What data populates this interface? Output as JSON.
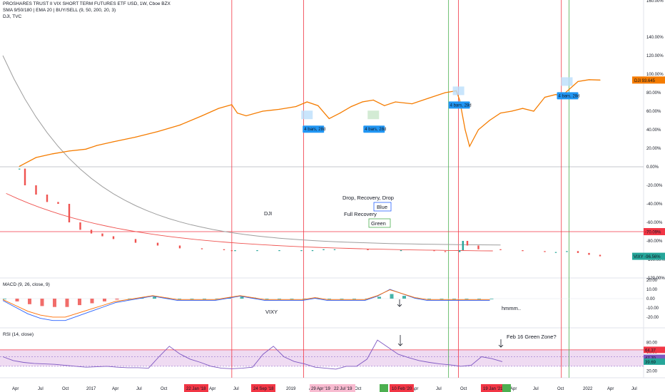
{
  "header": {
    "line1": "PROSHARES TRUST II VIX SHORT TERM FUTURES ETF USD, 1W, Cboe BZX",
    "line2": "SMA 9/50/180 | EMA 20 | BUY/SELL (9, 50, 200, 20, 3)",
    "line3": "DJI, TVC"
  },
  "indicators": {
    "macd_label": "MACD (9, 26, close, 9)",
    "rsi_label": "RSI (14, close)"
  },
  "colors": {
    "dji": "#f57c00",
    "vixy_up": "#26a69a",
    "vixy_down": "#ef5350",
    "sma_long": "#9e9e9e",
    "ema": "#ef5350",
    "macd_line": "#2962ff",
    "signal_line": "#ff6d00",
    "rsi_line": "#7e57c2",
    "rsi_band": "#e1bee7",
    "red_marker": "#f23645",
    "green_marker": "#22ab94",
    "projection_box": "#2196f3"
  },
  "annotations": {
    "dji": "DJI",
    "vixy": "VIXY",
    "drop": "Drop, Recovery, Drop",
    "blue": "Blue",
    "full": "Full Recovery",
    "green": "Green",
    "hmmm": "hmmm..",
    "feb16": "Feb 16 Green Zone?",
    "bars": [
      "4 bars, 28d",
      "4 bars, 28d",
      "4 bars, 28d",
      "4 bars, 28d"
    ]
  },
  "chart_data": [
    {
      "type": "line",
      "name": "DJI vs VIXY percent change (main pane)",
      "y_axis_labels": [
        "140.00%",
        "120.00%",
        "100.00%",
        "80.00%",
        "60.00%",
        "40.00%",
        "20.00%",
        "0.00%",
        "-20.00%",
        "-40.00%",
        "-60.00%",
        "-80.00%",
        "-100.00%",
        "-120.00%"
      ],
      "top_label": "160.00%",
      "x_axis_labels": [
        "Apr",
        "Jul",
        "Oct",
        "2017",
        "Apr",
        "Jul",
        "Oct",
        "Apr",
        "Jul",
        "Oct",
        "2019",
        "Apr",
        "Jul",
        "Oct",
        "Apr",
        "Jul",
        "Oct",
        "2021",
        "Apr",
        "Jul",
        "Oct",
        "2022",
        "Apr",
        "Jul"
      ],
      "date_markers_red": [
        "22 Jan '18",
        "24 Sep '18",
        "10 Feb '20",
        "19 Jan '21"
      ],
      "date_markers_pink": [
        "29 Apr '19",
        "22 Jul '19"
      ],
      "date_marker_green_x": "",
      "series": [
        {
          "name": "DJI",
          "x": [
            2016.15,
            2016.3,
            2016.45,
            2016.6,
            2016.75,
            2016.85,
            2017.0,
            2017.2,
            2017.4,
            2017.6,
            2017.8,
            2017.95,
            2018.07,
            2018.12,
            2018.2,
            2018.35,
            2018.5,
            2018.65,
            2018.75,
            2018.85,
            2018.95,
            2019.05,
            2019.15,
            2019.25,
            2019.35,
            2019.45,
            2019.55,
            2019.7,
            2019.85,
            2020.0,
            2020.1,
            2020.13,
            2020.18,
            2020.22,
            2020.3,
            2020.4,
            2020.5,
            2020.6,
            2020.7,
            2020.8,
            2020.9,
            2021.0,
            2021.05,
            2021.2,
            2021.3,
            2021.4
          ],
          "values": [
            0.5,
            10,
            14,
            17,
            19,
            23,
            27,
            32,
            38,
            45,
            55,
            63,
            67,
            58,
            55,
            60,
            62,
            65,
            70,
            66,
            52,
            58,
            65,
            70,
            72,
            66,
            70,
            68,
            74,
            80,
            82,
            72,
            40,
            22,
            40,
            50,
            58,
            60,
            63,
            60,
            75,
            78,
            76,
            92,
            94,
            93.6
          ]
        },
        {
          "name": "VIXY",
          "x": [
            2016.15,
            2016.2,
            2016.3,
            2016.4,
            2016.5,
            2016.6,
            2016.7,
            2016.8,
            2016.9,
            2017.0,
            2017.2,
            2017.4,
            2017.6,
            2017.8,
            2018.0,
            2018.07,
            2018.1,
            2018.3,
            2018.5,
            2018.7,
            2018.8,
            2018.9,
            2019.0,
            2019.3,
            2019.6,
            2019.9,
            2020.0,
            2020.13,
            2020.16,
            2020.2,
            2020.3,
            2020.5,
            2020.7,
            2020.9,
            2021.0,
            2021.1,
            2021.2,
            2021.3,
            2021.4
          ],
          "values": [
            -2,
            -20,
            -30,
            -38,
            -40,
            -60,
            -68,
            -72,
            -75,
            -78,
            -82,
            -85,
            -88,
            -89,
            -90,
            -91,
            -90,
            -90,
            -90,
            -90,
            -90,
            -89,
            -89,
            -90,
            -90,
            -91,
            -92,
            -90,
            -80,
            -85,
            -89,
            -90,
            -91,
            -92,
            -92,
            -91,
            -93,
            -95,
            -96.6
          ]
        }
      ],
      "last_values": {
        "DJI": "93.645",
        "VIXY": "-96.56%",
        "red_line": "-70.09%"
      },
      "price_tags": [
        {
          "label": "DJI",
          "value": "93.645"
        },
        {
          "label": "VIXY",
          "value": "-96.56%"
        }
      ],
      "red_line_label": "-70.09%"
    },
    {
      "type": "bar",
      "name": "MACD",
      "y_axis_labels": [
        "20.00",
        "10.00",
        "0.00",
        "-10.00",
        "-20.00"
      ],
      "values": [
        0,
        -3,
        -6,
        -8,
        -9,
        -9,
        -7,
        -5,
        -3,
        -1,
        0,
        1,
        2,
        1,
        0,
        0,
        0,
        0,
        1,
        2,
        1,
        0,
        0,
        0,
        0,
        1,
        0,
        0,
        0,
        0,
        2,
        5,
        3,
        1,
        0,
        0,
        0,
        0,
        0,
        0
      ]
    },
    {
      "type": "line",
      "name": "RSI",
      "y_axis_labels": [
        "80.00",
        "60.00",
        "40.00",
        "20.00"
      ],
      "overbought": 64.37,
      "last_values": [
        "64.37",
        "47.70",
        "39.69"
      ],
      "values": [
        50,
        42,
        38,
        36,
        35,
        34,
        32,
        30,
        28,
        29,
        30,
        28,
        27,
        27,
        26,
        50,
        72,
        56,
        45,
        38,
        30,
        26,
        25,
        26,
        28,
        55,
        72,
        50,
        40,
        35,
        28,
        26,
        24,
        30,
        30,
        45,
        85,
        70,
        55,
        48,
        42,
        38,
        35,
        33,
        30,
        32,
        50,
        46,
        39.7
      ]
    }
  ]
}
